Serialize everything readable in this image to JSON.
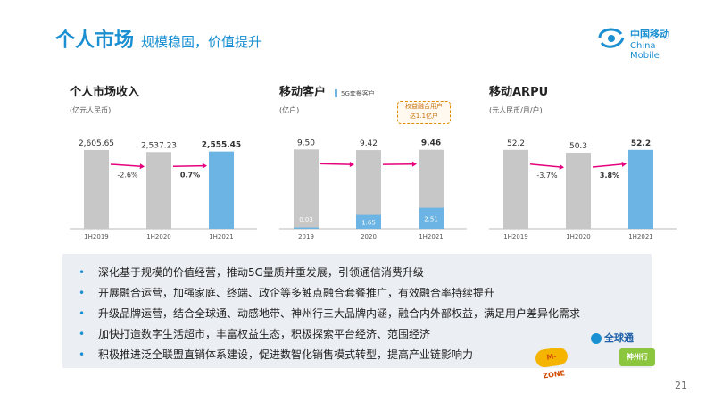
{
  "header": {
    "title_main": "个人市场",
    "title_sub": "规模稳固，价值提升",
    "logo_cn": "中国移动",
    "logo_en": "China Mobile"
  },
  "colors": {
    "accent": "#1a8fd1",
    "bar_gray": "#c7c7c7",
    "bar_blue": "#6cb4e4",
    "arrow": "#e5007e",
    "note": "#e08a00"
  },
  "chart_data": [
    {
      "type": "bar",
      "title": "个人市场收入",
      "unit": "(亿元人民币)",
      "categories": [
        "1H2019",
        "1H2020",
        "1H2021"
      ],
      "values": [
        2605.65,
        2537.23,
        2555.45
      ],
      "value_labels": [
        "2,605.65",
        "2,537.23",
        "2,555.45"
      ],
      "highlight_last": true,
      "growth_labels": [
        "-2.6%",
        "0.7%"
      ],
      "ylim": [
        0,
        2900
      ]
    },
    {
      "type": "bar",
      "title": "移动客户",
      "unit": "(亿户)",
      "legend": "5G套餐客户",
      "categories": [
        "2019",
        "2020",
        "1H2021"
      ],
      "values": [
        9.5,
        9.42,
        9.46
      ],
      "value_labels": [
        "9.50",
        "9.42",
        "9.46"
      ],
      "series": [
        {
          "name": "5G套餐客户",
          "values": [
            0.03,
            1.65,
            2.51
          ],
          "labels": [
            "0.03",
            "1.65",
            "2.51"
          ]
        }
      ],
      "note": [
        "权益融合用户",
        "达1.1亿户"
      ],
      "highlight_last": false,
      "ylim": [
        0,
        10.5
      ]
    },
    {
      "type": "bar",
      "title": "移动ARPU",
      "unit": "(元人民币/月/户)",
      "categories": [
        "1H2019",
        "1H2020",
        "1H2021"
      ],
      "values": [
        52.2,
        50.3,
        52.2
      ],
      "value_labels": [
        "52.2",
        "50.3",
        "52.2"
      ],
      "highlight_last": true,
      "growth_labels": [
        "-3.7%",
        "3.8%"
      ],
      "ylim": [
        0,
        58
      ]
    }
  ],
  "bullets": [
    "深化基于规模的价值经营，推动5G量质并重发展，引领通信消费升级",
    "开展融合运营，加强家庭、终端、政企等多触点融合套餐推广，有效融合率持续提升",
    "升级品牌运营，结合全球通、动感地带、神州行三大品牌内涵，融合内外部权益，满足用户差异化需求",
    "加快打造数字生活超市，丰富权益生态，积极探索平台经济、范围经济",
    "积极推进泛全联盟直销体系建设，促进数智化销售模式转型，提高产业链影响力"
  ],
  "brands": {
    "qqt": "全球通",
    "mzone": "M-ZONE",
    "szx": "神州行"
  },
  "page_number": "21"
}
